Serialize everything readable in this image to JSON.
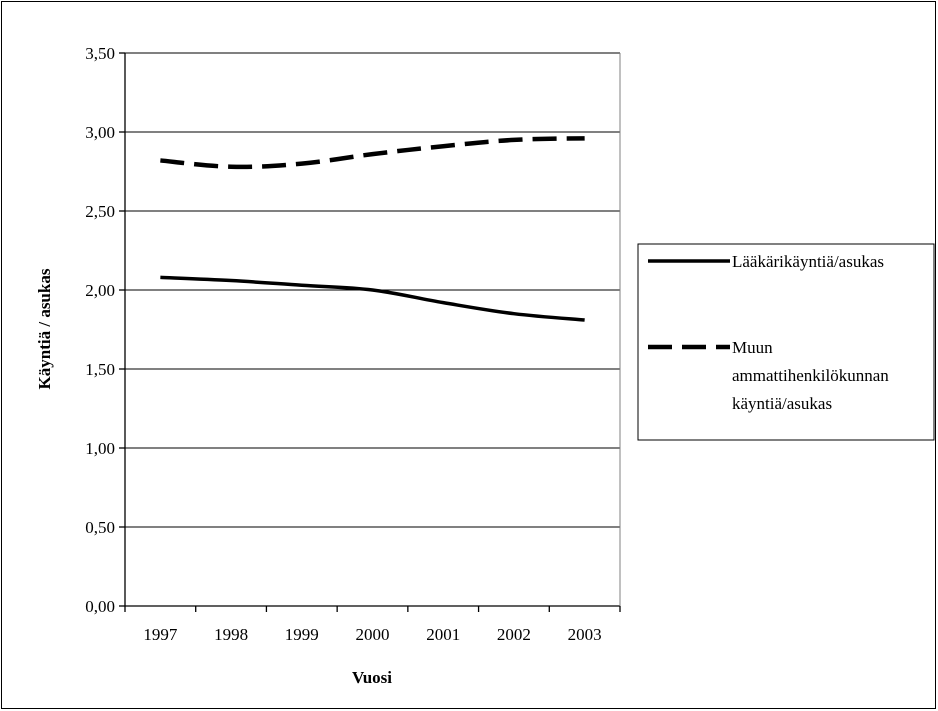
{
  "chart_data": {
    "type": "line",
    "title": "",
    "xlabel": "Vuosi",
    "ylabel": "Käyntiä / asukas",
    "categories": [
      "1997",
      "1998",
      "1999",
      "2000",
      "2001",
      "2002",
      "2003"
    ],
    "yticks": [
      "0,00",
      "0,50",
      "1,00",
      "1,50",
      "2,00",
      "2,50",
      "3,00",
      "3,50"
    ],
    "ylim": [
      0,
      3.5
    ],
    "grid": true,
    "legend_position": "right",
    "series": [
      {
        "name": "Lääkärikäyntiä/asukas",
        "style": "solid",
        "color": "#000000",
        "values": [
          2.08,
          2.06,
          2.03,
          2.0,
          1.92,
          1.85,
          1.81
        ]
      },
      {
        "name": "Muun ammattihenkilökunnan käyntiä/asukas",
        "style": "dashed",
        "color": "#000000",
        "values": [
          2.82,
          2.78,
          2.8,
          2.86,
          2.91,
          2.95,
          2.96
        ]
      }
    ],
    "legend": {
      "entries": [
        {
          "lines": [
            "Lääkärikäyntiä/asukas"
          ]
        },
        {
          "lines": [
            "Muun",
            "ammattihenkilökunnan",
            "käyntiä/asukas"
          ]
        }
      ]
    }
  }
}
